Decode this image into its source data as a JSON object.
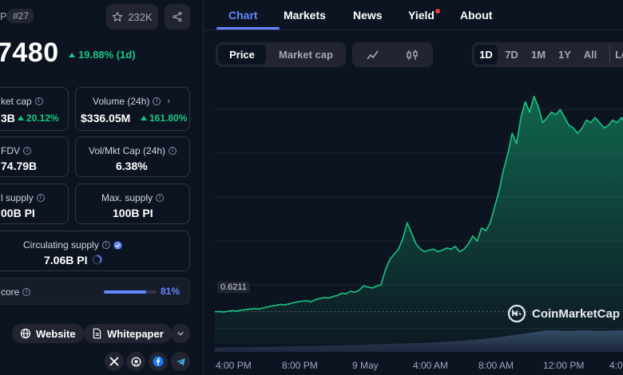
{
  "coin": {
    "ticker": "PI",
    "rank": "#27",
    "watchlist_count": "232K",
    "price": "7480",
    "change_24h": "19.88% (1d)"
  },
  "stats": {
    "market_cap": {
      "label": "ket cap",
      "value": "3B",
      "change": "20.12%"
    },
    "volume": {
      "label": "Volume (24h)",
      "value": "$336.05M",
      "change": "161.80%"
    },
    "fdv": {
      "label": "FDV",
      "value": "74.79B"
    },
    "vol_mkt_cap": {
      "label": "Vol/Mkt Cap (24h)",
      "value": "6.38%"
    },
    "total_supply": {
      "label": "l supply",
      "value": "00B PI"
    },
    "max_supply": {
      "label": "Max. supply",
      "value": "100B PI"
    },
    "circulating_supply": {
      "label": "Circulating supply",
      "value": "7.06B PI"
    },
    "profile_score": {
      "label": "core",
      "value": "81%",
      "fraction": 0.81
    }
  },
  "links": {
    "website": "Website",
    "whitepaper": "Whitepaper"
  },
  "socials": [
    "x-icon",
    "github-icon",
    "facebook-icon",
    "telegram-icon"
  ],
  "tabs": [
    "Chart",
    "Markets",
    "News",
    "Yield",
    "About"
  ],
  "chart_controls": {
    "type_options": [
      "Price",
      "Market cap"
    ],
    "selected_type": "Price",
    "ranges": [
      "1D",
      "7D",
      "1M",
      "1Y",
      "All",
      "Lo"
    ],
    "selected_range": "1D"
  },
  "colors": {
    "accent": "#6188ff",
    "up": "#16c784",
    "background": "#0d1421",
    "alert": "#ea3943"
  },
  "chart_data": {
    "type": "area",
    "title": "",
    "xlabel": "",
    "ylabel": "",
    "x_tick_labels": [
      "4:00 PM",
      "8:00 PM",
      "9 May",
      "4:00 AM",
      "8:00 AM",
      "12:00 PM",
      "4:0"
    ],
    "open_price_label": "0.6211",
    "watermark": "CoinMarketCap",
    "series": [
      {
        "values": [
          0.6211,
          0.6215,
          0.6205,
          0.622,
          0.623,
          0.6225,
          0.624,
          0.625,
          0.626,
          0.627,
          0.6262,
          0.628,
          0.63,
          0.632,
          0.633,
          0.635,
          0.634,
          0.636,
          0.638,
          0.64,
          0.641,
          0.642,
          0.64,
          0.644,
          0.646,
          0.648,
          0.647,
          0.65,
          0.652,
          0.656,
          0.655,
          0.66,
          0.658,
          0.662,
          0.67,
          0.668,
          0.666,
          0.67,
          0.672,
          0.7,
          0.72,
          0.73,
          0.74,
          0.76,
          0.79,
          0.77,
          0.75,
          0.74,
          0.735,
          0.738,
          0.74,
          0.735,
          0.738,
          0.742,
          0.74,
          0.745,
          0.735,
          0.74,
          0.75,
          0.765,
          0.755,
          0.78,
          0.775,
          0.79,
          0.82,
          0.85,
          0.89,
          0.92,
          0.96,
          0.94,
          0.99,
          1.02,
          1.0,
          1.03,
          1.01,
          0.98,
          0.99,
          1.0,
          0.995,
          1.005,
          0.99,
          0.975,
          0.97,
          0.96,
          0.97,
          0.985,
          0.98,
          0.99,
          0.98,
          0.97,
          0.975,
          0.985,
          0.98,
          0.99,
          0.975,
          0.98
        ]
      }
    ],
    "volume_series": [
      0.2,
      0.2,
      0.21,
      0.21,
      0.22,
      0.22,
      0.23,
      0.23,
      0.24,
      0.25,
      0.25,
      0.26,
      0.27,
      0.27,
      0.28,
      0.29,
      0.3,
      0.31,
      0.32,
      0.33,
      0.34,
      0.35,
      0.36,
      0.37,
      0.38,
      0.39,
      0.4,
      0.41,
      0.42,
      0.44,
      0.46,
      0.48,
      0.5,
      0.52,
      0.55,
      0.58,
      0.62,
      0.66,
      0.7,
      0.75,
      0.8,
      0.85,
      0.9,
      0.95,
      1.0,
      1.0,
      0.98,
      0.97,
      0.99,
      1.0,
      0.98,
      0.97,
      0.98,
      0.99,
      1.0,
      0.99
    ],
    "ylim": [
      0.56,
      1.06
    ]
  }
}
